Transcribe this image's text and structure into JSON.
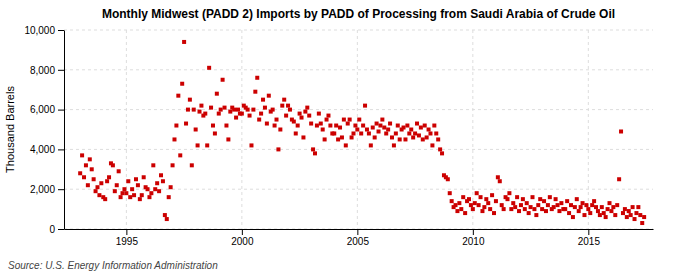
{
  "chart_data": {
    "type": "scatter",
    "title": "Monthly Midwest (PADD 2) Imports by PADD of Processing from Saudi Arabia of Crude Oil",
    "ylabel": "Thousand Barrels",
    "source": "Source: U.S. Energy Information Administration",
    "color": "#cc0000",
    "marker": "square",
    "grid": true,
    "xlim": [
      1992.3,
      2017.8
    ],
    "xticks": [
      1995,
      2000,
      2005,
      2010,
      2015
    ],
    "ylim": [
      0,
      10000
    ],
    "yticks": [
      0,
      {
        "value": 2000,
        "label": "2,000"
      },
      {
        "value": 4000,
        "label": "4,000"
      },
      {
        "value": 6000,
        "label": "6,000"
      },
      {
        "value": 8000,
        "label": "8,000"
      },
      {
        "value": 10000,
        "label": "10,000"
      }
    ],
    "x": [
      1993,
      1993.0833333333333,
      1993.1666666666667,
      1993.25,
      1993.3333333333333,
      1993.4166666666667,
      1993.5,
      1993.5833333333333,
      1993.6666666666667,
      1993.75,
      1993.8333333333333,
      1993.9166666666667,
      1994,
      1994.0833333333333,
      1994.1666666666667,
      1994.25,
      1994.3333333333333,
      1994.4166666666667,
      1994.5,
      1994.5833333333333,
      1994.6666666666667,
      1994.75,
      1994.8333333333333,
      1994.9166666666667,
      1995,
      1995.0833333333333,
      1995.1666666666667,
      1995.25,
      1995.3333333333333,
      1995.4166666666667,
      1995.5,
      1995.5833333333333,
      1995.6666666666667,
      1995.75,
      1995.8333333333333,
      1995.9166666666667,
      1996,
      1996.0833333333333,
      1996.1666666666667,
      1996.25,
      1996.3333333333333,
      1996.4166666666667,
      1996.5,
      1996.5833333333333,
      1996.6666666666667,
      1996.75,
      1996.8333333333333,
      1996.9166666666667,
      1997,
      1997.0833333333333,
      1997.1666666666667,
      1997.25,
      1997.3333333333333,
      1997.4166666666667,
      1997.5,
      1997.5833333333333,
      1997.6666666666667,
      1997.75,
      1997.8333333333333,
      1997.9166666666667,
      1998,
      1998.0833333333333,
      1998.1666666666667,
      1998.25,
      1998.3333333333333,
      1998.4166666666667,
      1998.5,
      1998.5833333333333,
      1998.6666666666667,
      1998.75,
      1998.8333333333333,
      1998.9166666666667,
      1999,
      1999.0833333333333,
      1999.1666666666667,
      1999.25,
      1999.3333333333333,
      1999.4166666666667,
      1999.5,
      1999.5833333333333,
      1999.6666666666667,
      1999.75,
      1999.8333333333333,
      1999.9166666666667,
      2000,
      2000.0833333333333,
      2000.1666666666667,
      2000.25,
      2000.3333333333333,
      2000.4166666666667,
      2000.5,
      2000.5833333333333,
      2000.6666666666667,
      2000.75,
      2000.8333333333333,
      2000.9166666666667,
      2001,
      2001.0833333333333,
      2001.1666666666667,
      2001.25,
      2001.3333333333333,
      2001.4166666666667,
      2001.5,
      2001.5833333333333,
      2001.6666666666667,
      2001.75,
      2001.8333333333333,
      2001.9166666666667,
      2002,
      2002.0833333333333,
      2002.1666666666667,
      2002.25,
      2002.3333333333333,
      2002.4166666666667,
      2002.5,
      2002.5833333333333,
      2002.6666666666667,
      2002.75,
      2002.8333333333333,
      2002.9166666666667,
      2003,
      2003.0833333333333,
      2003.1666666666667,
      2003.25,
      2003.3333333333333,
      2003.4166666666667,
      2003.5,
      2003.5833333333333,
      2003.6666666666667,
      2003.75,
      2003.8333333333333,
      2003.9166666666667,
      2004,
      2004.0833333333333,
      2004.1666666666667,
      2004.25,
      2004.3333333333333,
      2004.4166666666667,
      2004.5,
      2004.5833333333333,
      2004.6666666666667,
      2004.75,
      2004.8333333333333,
      2004.9166666666667,
      2005,
      2005.0833333333333,
      2005.1666666666667,
      2005.25,
      2005.3333333333333,
      2005.4166666666667,
      2005.5,
      2005.5833333333333,
      2005.6666666666667,
      2005.75,
      2005.8333333333333,
      2005.9166666666667,
      2006,
      2006.0833333333333,
      2006.1666666666667,
      2006.25,
      2006.3333333333333,
      2006.4166666666667,
      2006.5,
      2006.5833333333333,
      2006.6666666666667,
      2006.75,
      2006.8333333333333,
      2006.9166666666667,
      2007,
      2007.0833333333333,
      2007.1666666666667,
      2007.25,
      2007.3333333333333,
      2007.4166666666667,
      2007.5,
      2007.5833333333333,
      2007.6666666666667,
      2007.75,
      2007.8333333333333,
      2007.9166666666667,
      2008,
      2008.0833333333333,
      2008.1666666666667,
      2008.25,
      2008.3333333333333,
      2008.4166666666667,
      2008.5,
      2008.5833333333333,
      2008.6666666666667,
      2008.75,
      2008.8333333333333,
      2008.9166666666667,
      2009,
      2009.0833333333333,
      2009.1666666666667,
      2009.25,
      2009.3333333333333,
      2009.4166666666667,
      2009.5,
      2009.5833333333333,
      2009.6666666666667,
      2009.75,
      2009.8333333333333,
      2009.9166666666667,
      2010,
      2010.0833333333333,
      2010.1666666666667,
      2010.25,
      2010.3333333333333,
      2010.4166666666667,
      2010.5,
      2010.5833333333333,
      2010.6666666666667,
      2010.75,
      2010.8333333333333,
      2010.9166666666667,
      2011,
      2011.0833333333333,
      2011.1666666666667,
      2011.25,
      2011.3333333333333,
      2011.4166666666667,
      2011.5,
      2011.5833333333333,
      2011.6666666666667,
      2011.75,
      2011.8333333333333,
      2011.9166666666667,
      2012,
      2012.0833333333333,
      2012.1666666666667,
      2012.25,
      2012.3333333333333,
      2012.4166666666667,
      2012.5,
      2012.5833333333333,
      2012.6666666666667,
      2012.75,
      2012.8333333333333,
      2012.9166666666667,
      2013,
      2013.0833333333333,
      2013.1666666666667,
      2013.25,
      2013.3333333333333,
      2013.4166666666667,
      2013.5,
      2013.5833333333333,
      2013.6666666666667,
      2013.75,
      2013.8333333333333,
      2013.9166666666667,
      2014,
      2014.0833333333333,
      2014.1666666666667,
      2014.25,
      2014.3333333333333,
      2014.4166666666667,
      2014.5,
      2014.5833333333333,
      2014.6666666666667,
      2014.75,
      2014.8333333333333,
      2014.9166666666667,
      2015,
      2015.0833333333333,
      2015.1666666666667,
      2015.25,
      2015.3333333333333,
      2015.4166666666667,
      2015.5,
      2015.5833333333333,
      2015.6666666666667,
      2015.75,
      2015.8333333333333,
      2015.9166666666667,
      2016,
      2016.0833333333333,
      2016.1666666666667,
      2016.25,
      2016.3333333333333,
      2016.4166666666667,
      2016.5,
      2016.5833333333333,
      2016.6666666666667,
      2016.75,
      2016.8333333333333,
      2016.9166666666667,
      2017,
      2017.0833333333333,
      2017.1666666666667,
      2017.25,
      2017.3333333333333,
      2017.4166666666667
    ],
    "values": [
      2800,
      3700,
      2600,
      3200,
      2200,
      3500,
      3000,
      2500,
      1900,
      2100,
      1700,
      2300,
      1600,
      1500,
      2400,
      2600,
      3300,
      3200,
      1900,
      2200,
      2900,
      1600,
      1800,
      2000,
      1800,
      2400,
      1600,
      2000,
      1700,
      2500,
      2200,
      1500,
      1700,
      2600,
      2100,
      2000,
      1600,
      1800,
      3200,
      2000,
      2300,
      1900,
      2700,
      2400,
      700,
      500,
      1600,
      2100,
      3200,
      4500,
      5200,
      6700,
      3700,
      7300,
      9400,
      5300,
      6000,
      6500,
      3200,
      6000,
      5000,
      4200,
      5900,
      6200,
      5700,
      5800,
      4200,
      8100,
      6100,
      5200,
      4800,
      6800,
      5800,
      6000,
      7500,
      6100,
      5200,
      4500,
      5900,
      6100,
      6000,
      5600,
      6000,
      5800,
      5800,
      6200,
      6100,
      6000,
      5700,
      4200,
      6000,
      6900,
      7600,
      5500,
      5800,
      6500,
      6100,
      5300,
      6700,
      5900,
      6000,
      5200,
      5500,
      4000,
      5000,
      6200,
      6500,
      5700,
      6200,
      6000,
      5500,
      5400,
      4800,
      5200,
      5800,
      5600,
      4600,
      5900,
      6100,
      5700,
      5300,
      4000,
      3800,
      5200,
      5800,
      5300,
      5000,
      4500,
      5500,
      5700,
      5200,
      4800,
      4800,
      5200,
      4500,
      5100,
      4600,
      5500,
      4200,
      5300,
      5500,
      4600,
      4800,
      5200,
      5000,
      5500,
      4800,
      5200,
      6200,
      5000,
      4800,
      4200,
      5100,
      4600,
      5300,
      4900,
      5200,
      5500,
      5100,
      4800,
      5000,
      5300,
      4600,
      4200,
      4800,
      5200,
      4500,
      5000,
      5100,
      4500,
      5200,
      4800,
      5000,
      4600,
      4800,
      5300,
      4700,
      5100,
      4500,
      5200,
      4600,
      5000,
      4800,
      4200,
      5200,
      4800,
      4500,
      4000,
      3800,
      2700,
      2600,
      2500,
      1800,
      1400,
      1100,
      1200,
      900,
      1300,
      1000,
      1600,
      800,
      1400,
      1500,
      1200,
      1000,
      1300,
      1800,
      1200,
      1600,
      900,
      1100,
      1500,
      1300,
      1000,
      1700,
      800,
      1400,
      2600,
      2400,
      1200,
      1000,
      1600,
      1500,
      1800,
      1000,
      1300,
      1100,
      1600,
      900,
      1200,
      1500,
      1000,
      1300,
      800,
      1100,
      1600,
      1000,
      700,
      1200,
      1500,
      1000,
      1400,
      900,
      1200,
      1600,
      1000,
      1100,
      1500,
      1200,
      900,
      1300,
      1000,
      1000,
      1400,
      800,
      1200,
      600,
      1100,
      1500,
      900,
      1100,
      1300,
      700,
      1200,
      1000,
      800,
      1200,
      1400,
      1100,
      900,
      700,
      1100,
      800,
      600,
      1000,
      1300,
      900,
      1100,
      700,
      1200,
      2500,
      4900,
      800,
      1000,
      600,
      900,
      700,
      1100,
      500,
      800,
      1100,
      700,
      300,
      600
    ]
  }
}
